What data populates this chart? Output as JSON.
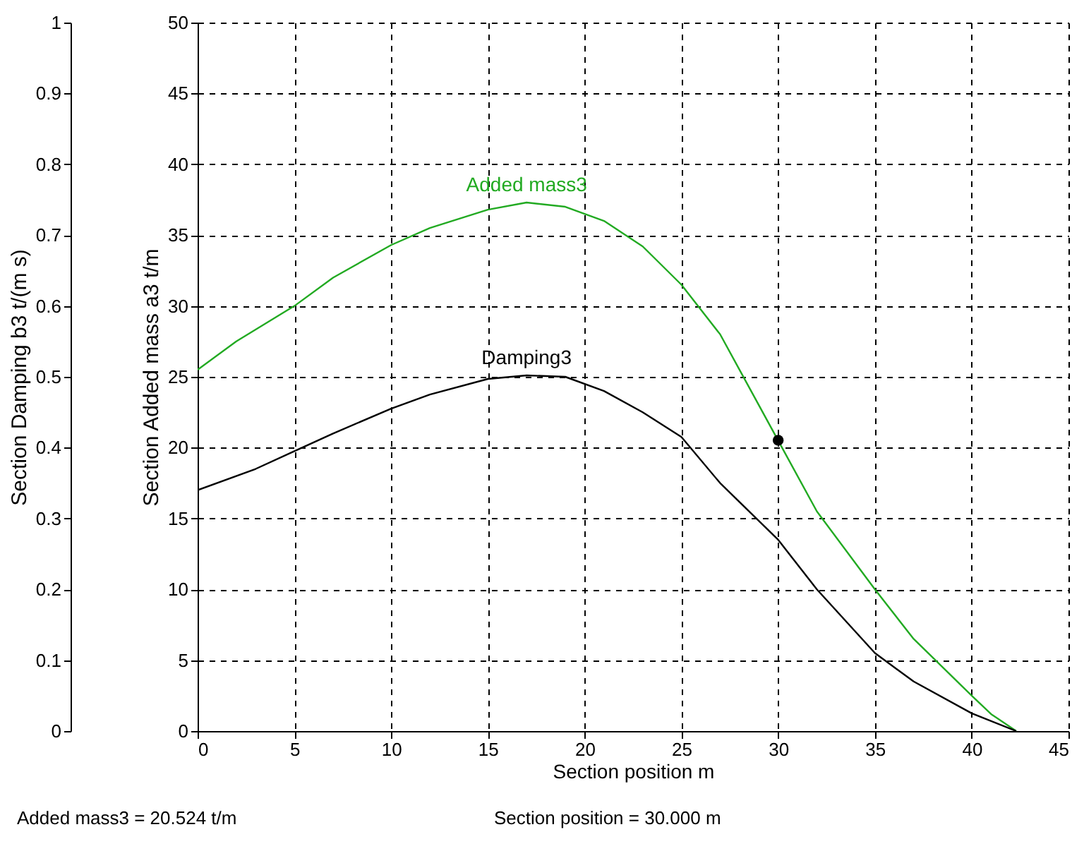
{
  "chart_data": {
    "type": "line",
    "xlabel": "Section position  m",
    "ylabel": "Section Added mass a3  t/m",
    "y2label": "Section Damping b3  t/(m s)",
    "xlim": [
      0,
      45
    ],
    "xticks": [
      0,
      5,
      10,
      15,
      20,
      25,
      30,
      35,
      40,
      45
    ],
    "ylim": [
      0,
      50
    ],
    "yticks": [
      0,
      5,
      10,
      15,
      20,
      25,
      30,
      35,
      40,
      45,
      50
    ],
    "y2lim": [
      0,
      1
    ],
    "y2ticks": [
      0,
      0.1,
      0.2,
      0.3,
      0.4,
      0.5,
      0.6,
      0.7,
      0.8,
      0.9,
      1
    ],
    "grid": true,
    "marker": "none",
    "line_style": "solid",
    "series": [
      {
        "name": "Added mass3",
        "color": "#22aa22",
        "x": [
          0,
          2,
          5,
          7,
          10,
          12,
          15,
          17,
          19,
          21,
          23,
          25,
          27,
          29,
          30,
          32,
          35,
          37,
          40,
          41,
          42.3
        ],
        "values": [
          25.5,
          27.5,
          30,
          32,
          34.3,
          35.5,
          36.8,
          37.3,
          37,
          36,
          34.2,
          31.5,
          28,
          23,
          20.5,
          15.5,
          10,
          6.5,
          2.5,
          1.2,
          0
        ]
      },
      {
        "name": "Damping3",
        "color": "#000000",
        "axis": "y2",
        "x": [
          0,
          3,
          5,
          7,
          10,
          12,
          15,
          17,
          19,
          21,
          23,
          25,
          27,
          30,
          32,
          35,
          37,
          40,
          42.3
        ],
        "values": [
          0.34,
          0.37,
          0.395,
          0.42,
          0.455,
          0.475,
          0.497,
          0.502,
          0.5,
          0.48,
          0.45,
          0.415,
          0.35,
          0.27,
          0.2,
          0.11,
          0.07,
          0.025,
          0
        ]
      },
      {
        "type": "scatter",
        "marker": "circle",
        "color": "#000000",
        "x": [
          30
        ],
        "values": [
          20.524
        ]
      }
    ],
    "annotations": [
      "Added mass3 =  20.524 t/m",
      "Section position =  30.000 m"
    ]
  }
}
